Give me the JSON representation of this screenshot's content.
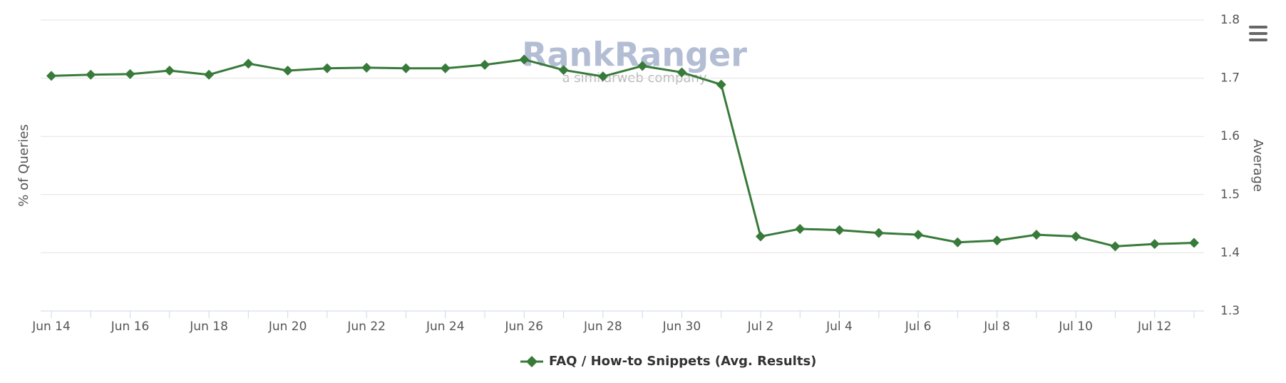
{
  "chart_data": {
    "type": "line",
    "y_label_left": "% of Queries",
    "y_label_right": "Average",
    "watermark": {
      "brand": "RankRanger",
      "tagline": "a similarweb company"
    },
    "categories": [
      "Jun 14",
      null,
      "Jun 16",
      null,
      "Jun 18",
      null,
      "Jun 20",
      null,
      "Jun 22",
      null,
      "Jun 24",
      null,
      "Jun 26",
      null,
      "Jun 28",
      null,
      "Jun 30",
      null,
      "Jul 2",
      null,
      "Jul 4",
      null,
      "Jul 6",
      null,
      "Jul 8",
      null,
      "Jul 10",
      null,
      "Jul 12",
      null
    ],
    "series": [
      {
        "name": "FAQ / How-to Snippets (Avg. Results)",
        "color": "#387a3a",
        "axis": "y2",
        "values": [
          1.704,
          1.706,
          1.707,
          1.713,
          1.706,
          1.725,
          1.713,
          1.717,
          1.718,
          1.717,
          1.717,
          1.723,
          1.732,
          1.714,
          1.703,
          1.721,
          1.71,
          1.689,
          1.428,
          1.441,
          1.439,
          1.434,
          1.431,
          1.418,
          1.421,
          1.431,
          1.428,
          1.411,
          1.415,
          1.417
        ]
      }
    ],
    "y2lim": [
      1.3,
      1.8
    ],
    "y2ticks": [
      1.3,
      1.4,
      1.5,
      1.6,
      1.7,
      1.8
    ],
    "grid": true,
    "legend": "bottom"
  }
}
